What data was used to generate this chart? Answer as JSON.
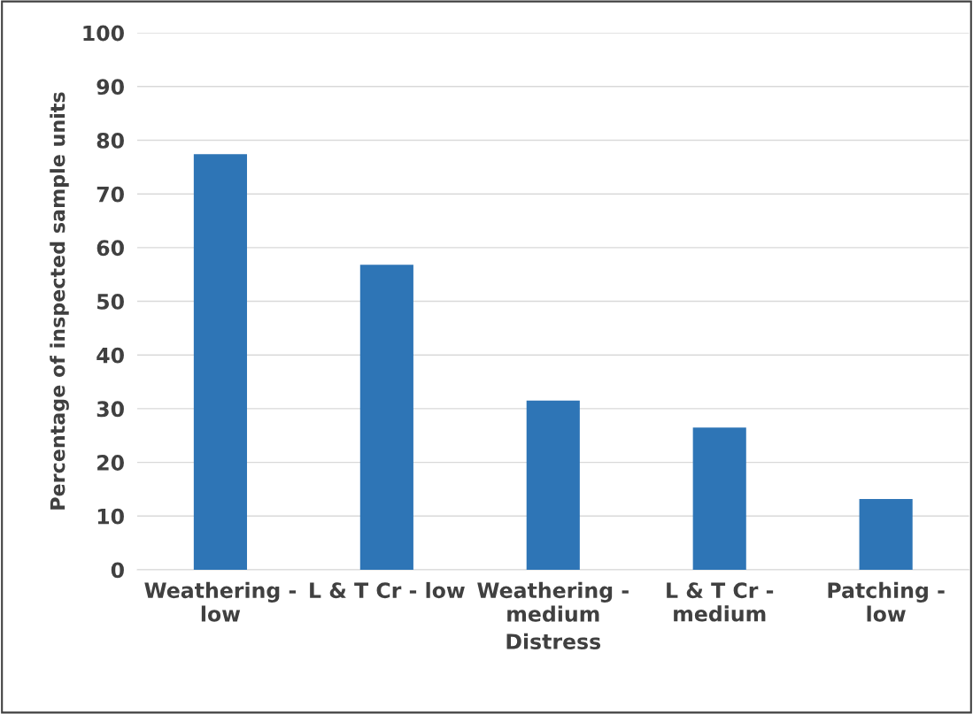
{
  "chart_data": {
    "type": "bar",
    "xlabel": "Distress",
    "ylabel": "Percentage of inspected sample units",
    "categories": [
      "Weathering -\nlow",
      "L & T Cr - low",
      "Weathering -\nmedium",
      "L & T Cr -\nmedium",
      "Patching -\nlow"
    ],
    "values": [
      77.4,
      56.8,
      31.5,
      26.5,
      13.2
    ],
    "color": "#2e75b6",
    "ylim": [
      0,
      100
    ],
    "yticks": [
      0,
      10,
      20,
      30,
      40,
      50,
      60,
      70,
      80,
      90,
      100
    ],
    "grid": "y"
  }
}
